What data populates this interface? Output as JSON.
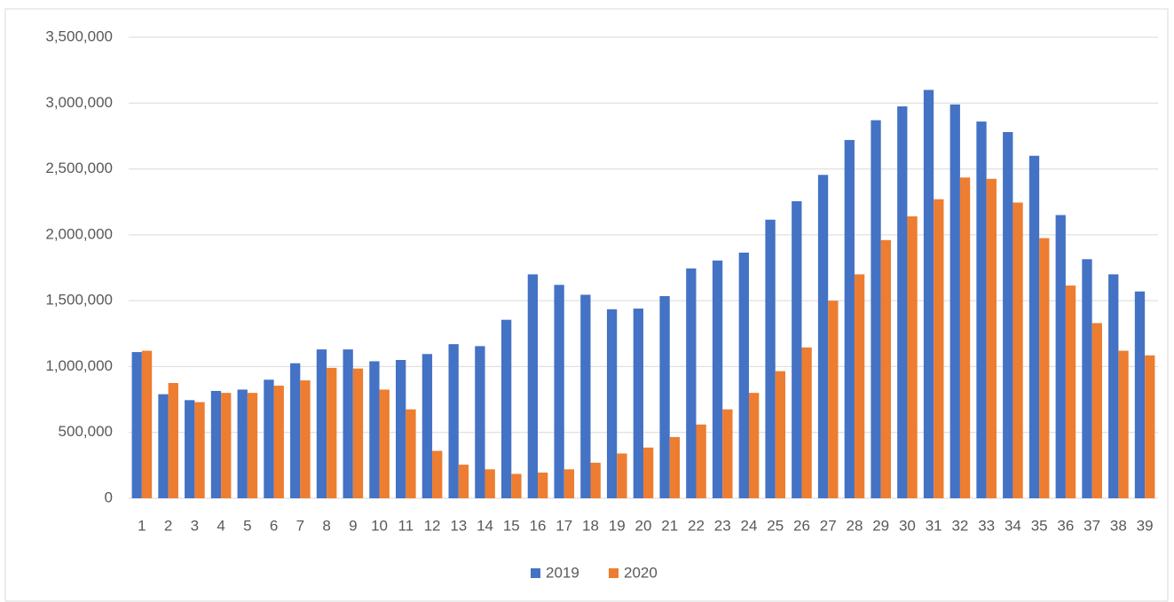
{
  "chart_data": {
    "type": "bar",
    "categories": [
      "1",
      "2",
      "3",
      "4",
      "5",
      "6",
      "7",
      "8",
      "9",
      "10",
      "11",
      "12",
      "13",
      "14",
      "15",
      "16",
      "17",
      "18",
      "19",
      "20",
      "21",
      "22",
      "23",
      "24",
      "25",
      "26",
      "27",
      "28",
      "29",
      "30",
      "31",
      "32",
      "33",
      "34",
      "35",
      "36",
      "37",
      "38",
      "39"
    ],
    "series": [
      {
        "name": "2019",
        "color": "#4472c4",
        "values": [
          1110000,
          790000,
          745000,
          815000,
          825000,
          900000,
          1025000,
          1130000,
          1130000,
          1040000,
          1050000,
          1095000,
          1170000,
          1155000,
          1355000,
          1700000,
          1620000,
          1545000,
          1435000,
          1440000,
          1535000,
          1745000,
          1805000,
          1865000,
          2115000,
          2255000,
          2455000,
          2720000,
          2870000,
          2975000,
          3100000,
          2990000,
          2860000,
          2780000,
          2600000,
          2150000,
          1815000,
          1700000,
          1570000
        ]
      },
      {
        "name": "2020",
        "color": "#ed7d31",
        "values": [
          1120000,
          875000,
          730000,
          800000,
          800000,
          855000,
          895000,
          990000,
          985000,
          825000,
          675000,
          360000,
          255000,
          220000,
          185000,
          195000,
          220000,
          270000,
          340000,
          385000,
          465000,
          560000,
          675000,
          800000,
          965000,
          1145000,
          1500000,
          1700000,
          1960000,
          2140000,
          2270000,
          2435000,
          2425000,
          2245000,
          1975000,
          1615000,
          1330000,
          1120000,
          1085000
        ]
      }
    ],
    "ylim": [
      0,
      3500000
    ],
    "yticks": [
      0,
      {
        "value": 500000,
        "label": "500,000"
      },
      {
        "value": 1000000,
        "label": "1,000,000"
      },
      {
        "value": 1500000,
        "label": "1,500,000"
      },
      {
        "value": 2000000,
        "label": "2,000,000"
      },
      {
        "value": 2500000,
        "label": "2,500,000"
      },
      {
        "value": 3000000,
        "label": "3,000,000"
      },
      {
        "value": 3500000,
        "label": "3,500,000"
      }
    ],
    "grid": true,
    "legend": "bottom"
  }
}
